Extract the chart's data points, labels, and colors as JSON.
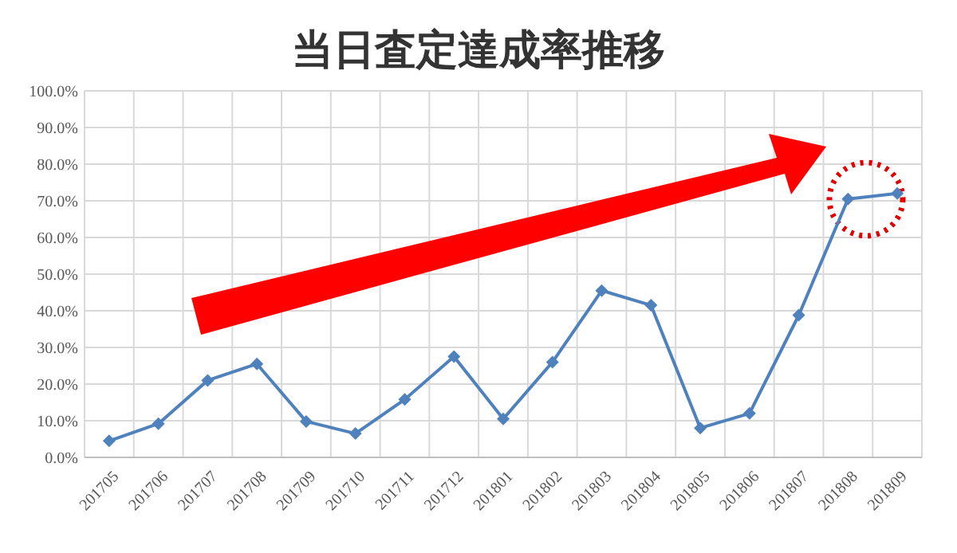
{
  "chart_data": {
    "type": "line",
    "title": "当日査定達成率推移",
    "categories": [
      "201705",
      "201706",
      "201707",
      "201708",
      "201709",
      "201710",
      "201711",
      "201712",
      "201801",
      "201802",
      "201803",
      "201804",
      "201805",
      "201806",
      "201807",
      "201808",
      "201809"
    ],
    "series": [
      {
        "color": "#4f81bd",
        "values": [
          4.5,
          9.2,
          21,
          25.5,
          9.8,
          6.5,
          15.8,
          27.5,
          10.5,
          26,
          45.5,
          41.5,
          8,
          12,
          38.8,
          70.5,
          72
        ]
      }
    ],
    "ylim": [
      0,
      100
    ],
    "yticks": [
      {
        "value": 0,
        "label": "0.0%"
      },
      {
        "value": 10,
        "label": "10.0%"
      },
      {
        "value": 20,
        "label": "20.0%"
      },
      {
        "value": 30,
        "label": "30.0%"
      },
      {
        "value": 40,
        "label": "40.0%"
      },
      {
        "value": 50,
        "label": "50.0%"
      },
      {
        "value": 60,
        "label": "60.0%"
      },
      {
        "value": 70,
        "label": "70.0%"
      },
      {
        "value": 80,
        "label": "80.0%"
      },
      {
        "value": 90,
        "label": "90.0%"
      },
      {
        "value": 100,
        "label": "100.0%"
      }
    ],
    "grid": true,
    "marker": "diamond",
    "line_style": "solid"
  }
}
